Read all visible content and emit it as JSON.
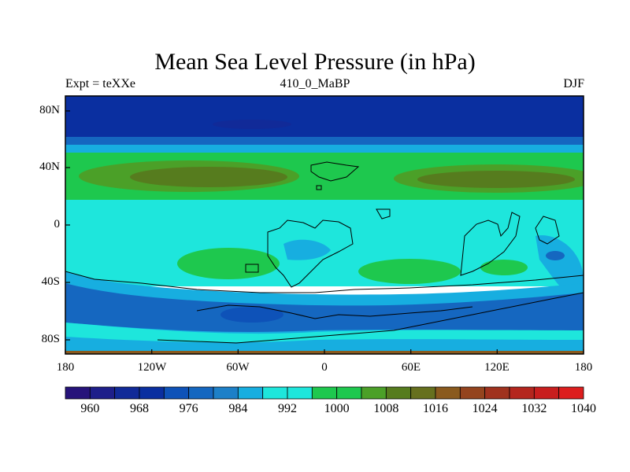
{
  "title": "Mean Sea Level Pressure (in hPa)",
  "left_label": "Expt = teXXe",
  "center_label": "410_0_MaBP",
  "right_label": "DJF",
  "lat_ticks": [
    "80N",
    "40N",
    "0",
    "40S",
    "80S"
  ],
  "lon_ticks": [
    "180",
    "120W",
    "60W",
    "0",
    "60E",
    "120E",
    "180"
  ],
  "colorbar": {
    "labels": [
      "960",
      "968",
      "976",
      "984",
      "992",
      "1000",
      "1008",
      "1016",
      "1024",
      "1032",
      "1040"
    ],
    "colors": [
      "#26137a",
      "#1e1f8a",
      "#112a98",
      "#0a2fa0",
      "#0e52b8",
      "#1567c0",
      "#1d80c8",
      "#17aee0",
      "#1ee6dc",
      "#1ee6dc",
      "#1ec84e",
      "#1ec84e",
      "#4ba028",
      "#567c1e",
      "#66701e",
      "#8a5a1e",
      "#94441e",
      "#a0321e",
      "#b4261e",
      "#c81e1e",
      "#dd1e1e"
    ]
  },
  "map_colors": {
    "polar_n": "#0a2fa0",
    "band_n_mid": "#1567c0",
    "band_n_low": "#17aee0",
    "green": "#1ec84e",
    "olive": "#567c1e",
    "tropics": "#1ee6dc",
    "south_low": "#17aee0",
    "south_trough": "#1567c0",
    "deep_low": "#0e52b8",
    "edge": "#8a5a1e"
  }
}
